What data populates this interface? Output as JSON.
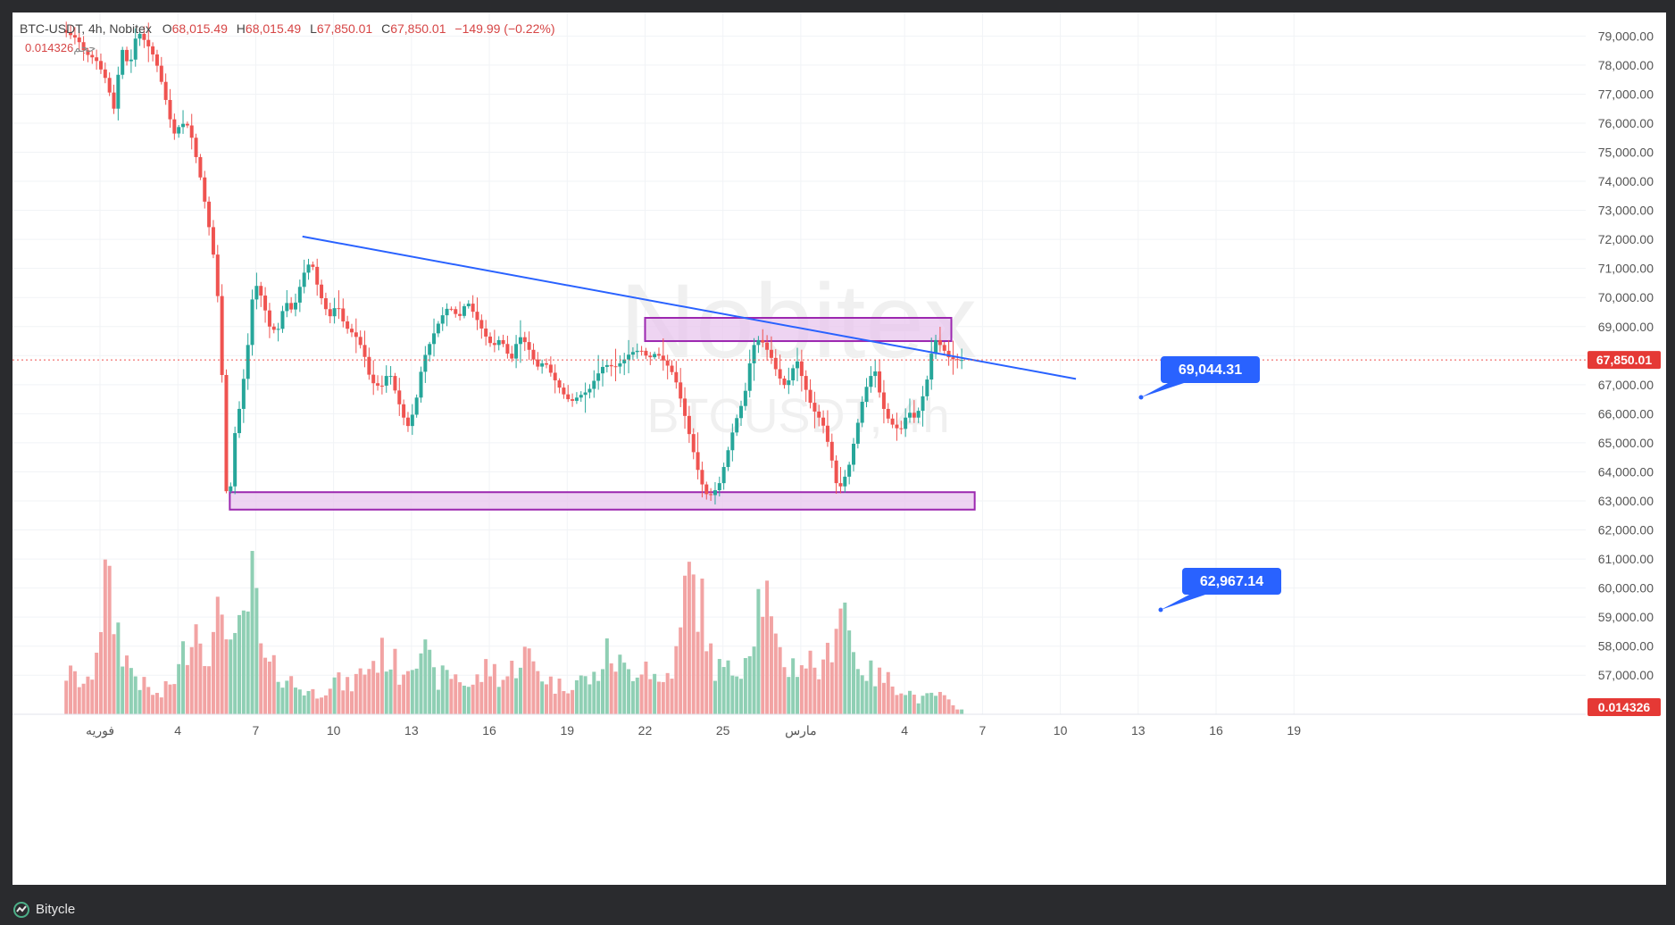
{
  "legend": {
    "symbol": "BTC-USDT, 4h, Nobitex",
    "open_label": "O",
    "open": "68,015.49",
    "high_label": "H",
    "high": "68,015.49",
    "low_label": "L",
    "low": "67,850.01",
    "close_label": "C",
    "close": "67,850.01",
    "change": "−149.99 (−0.22%)",
    "volume_label": "حجم",
    "volume": "0.014326"
  },
  "watermark": {
    "line1": "Nobitex",
    "line2": "BTCUSDT, 4h"
  },
  "footer": {
    "brand": "Bitycle"
  },
  "colors": {
    "up": "#26a69a",
    "down": "#ef5350",
    "up_volume": "#8fcfb4",
    "down_volume": "#f2a3a3",
    "trendline": "#2962ff",
    "zone_fill": "#e8c6ee",
    "zone_border": "#9c27b0",
    "callout": "#2962ff",
    "price_tag": "#e53935"
  },
  "chart_data": {
    "type": "candlestick",
    "symbol": "BTC-USDT",
    "timeframe": "4h",
    "y_axis": {
      "range": [
        55800,
        79700
      ],
      "tick_values": [
        57000,
        58000,
        59000,
        60000,
        61000,
        62000,
        63000,
        64000,
        65000,
        66000,
        67000,
        68000,
        69000,
        70000,
        71000,
        72000,
        73000,
        74000,
        75000,
        76000,
        77000,
        78000,
        79000
      ],
      "tick_labels": [
        "57,000.00",
        "58,000.00",
        "59,000.00",
        "60,000.00",
        "61,000.00",
        "62,000.00",
        "63,000.00",
        "64,000.00",
        "65,000.00",
        "66,000.00",
        "67,000.00",
        "68,000.00",
        "69,000.00",
        "70,000.00",
        "71,000.00",
        "72,000.00",
        "73,000.00",
        "74,000.00",
        "75,000.00",
        "76,000.00",
        "77,000.00",
        "78,000.00",
        "79,000.00"
      ]
    },
    "x_axis": {
      "tick_labels": [
        "فوریه",
        "4",
        "7",
        "10",
        "13",
        "16",
        "19",
        "22",
        "25",
        "مارس",
        "4",
        "7",
        "10",
        "13",
        "16",
        "19"
      ],
      "tick_days": [
        1,
        4,
        7,
        10,
        13,
        16,
        19,
        22,
        25,
        28,
        32,
        35,
        38,
        41,
        44,
        47
      ]
    },
    "current_price": {
      "value": 67850.01,
      "label": "67,850.01"
    },
    "current_volume_label": "0.014326",
    "candles_path": [
      [
        -0.3,
        79200
      ],
      [
        0.3,
        78900
      ],
      [
        0.6,
        78400
      ],
      [
        1.0,
        78200
      ],
      [
        1.4,
        77500
      ],
      [
        1.7,
        76500
      ],
      [
        2.0,
        78600
      ],
      [
        2.3,
        77900
      ],
      [
        2.6,
        79200
      ],
      [
        3.0,
        78700
      ],
      [
        3.3,
        78200
      ],
      [
        3.6,
        77200
      ],
      [
        4.0,
        75600
      ],
      [
        4.3,
        76000
      ],
      [
        4.6,
        75900
      ],
      [
        5.0,
        74300
      ],
      [
        5.3,
        72800
      ],
      [
        5.6,
        71100
      ],
      [
        5.8,
        69000
      ],
      [
        6.0,
        64000
      ],
      [
        6.1,
        62000
      ],
      [
        6.3,
        65000
      ],
      [
        6.6,
        66500
      ],
      [
        6.9,
        68600
      ],
      [
        7.1,
        70600
      ],
      [
        7.4,
        70000
      ],
      [
        7.7,
        69000
      ],
      [
        8.0,
        68800
      ],
      [
        8.3,
        69900
      ],
      [
        8.6,
        69500
      ],
      [
        9.0,
        70800
      ],
      [
        9.3,
        71300
      ],
      [
        9.6,
        70200
      ],
      [
        10.0,
        69300
      ],
      [
        10.3,
        69800
      ],
      [
        10.6,
        69000
      ],
      [
        11.0,
        68700
      ],
      [
        11.3,
        68200
      ],
      [
        11.6,
        67100
      ],
      [
        12.0,
        66900
      ],
      [
        12.3,
        67500
      ],
      [
        12.6,
        66600
      ],
      [
        13.0,
        65500
      ],
      [
        13.3,
        66200
      ],
      [
        13.6,
        67800
      ],
      [
        14.0,
        68700
      ],
      [
        14.3,
        69300
      ],
      [
        14.6,
        69700
      ],
      [
        15.0,
        69300
      ],
      [
        15.3,
        69900
      ],
      [
        15.6,
        69400
      ],
      [
        16.0,
        68700
      ],
      [
        16.3,
        68300
      ],
      [
        16.6,
        68600
      ],
      [
        17.0,
        67800
      ],
      [
        17.3,
        68700
      ],
      [
        17.6,
        68400
      ],
      [
        18.0,
        67600
      ],
      [
        18.3,
        67800
      ],
      [
        18.6,
        67300
      ],
      [
        19.0,
        66700
      ],
      [
        19.3,
        66400
      ],
      [
        19.6,
        66600
      ],
      [
        20.0,
        66800
      ],
      [
        20.3,
        67300
      ],
      [
        20.6,
        67700
      ],
      [
        21.0,
        67600
      ],
      [
        21.3,
        67800
      ],
      [
        21.6,
        68100
      ],
      [
        22.0,
        68200
      ],
      [
        22.3,
        67900
      ],
      [
        22.6,
        68100
      ],
      [
        23.0,
        67700
      ],
      [
        23.3,
        67300
      ],
      [
        23.6,
        66300
      ],
      [
        24.0,
        64800
      ],
      [
        24.3,
        63700
      ],
      [
        24.6,
        63100
      ],
      [
        25.0,
        63500
      ],
      [
        25.3,
        64500
      ],
      [
        25.6,
        65600
      ],
      [
        26.0,
        66600
      ],
      [
        26.3,
        68300
      ],
      [
        26.6,
        68600
      ],
      [
        27.0,
        68000
      ],
      [
        27.3,
        67300
      ],
      [
        27.6,
        66900
      ],
      [
        28.0,
        67900
      ],
      [
        28.3,
        67000
      ],
      [
        28.6,
        66200
      ],
      [
        29.0,
        65700
      ],
      [
        29.3,
        64700
      ],
      [
        29.6,
        63300
      ],
      [
        30.0,
        64100
      ],
      [
        30.3,
        65400
      ],
      [
        30.6,
        66700
      ],
      [
        31.0,
        67600
      ],
      [
        31.3,
        66300
      ],
      [
        31.6,
        65700
      ],
      [
        32.0,
        65400
      ],
      [
        32.3,
        66100
      ],
      [
        32.6,
        65800
      ],
      [
        33.0,
        67000
      ],
      [
        33.3,
        68600
      ],
      [
        33.6,
        68300
      ],
      [
        33.9,
        67900
      ],
      [
        34.2,
        67850
      ]
    ],
    "volume_path": [
      [
        -0.3,
        0.3
      ],
      [
        0.6,
        0.2
      ],
      [
        1.2,
        0.95
      ],
      [
        2.0,
        0.4
      ],
      [
        2.6,
        0.22
      ],
      [
        3.3,
        0.12
      ],
      [
        4.0,
        0.3
      ],
      [
        4.6,
        0.7
      ],
      [
        5.3,
        0.45
      ],
      [
        5.8,
        0.9
      ],
      [
        6.1,
        0.4
      ],
      [
        6.5,
        0.65
      ],
      [
        6.9,
        0.95
      ],
      [
        7.3,
        0.35
      ],
      [
        8.0,
        0.3
      ],
      [
        8.6,
        0.2
      ],
      [
        9.3,
        0.15
      ],
      [
        10.0,
        0.25
      ],
      [
        10.6,
        0.2
      ],
      [
        11.3,
        0.35
      ],
      [
        12.0,
        0.45
      ],
      [
        12.6,
        0.3
      ],
      [
        13.3,
        0.55
      ],
      [
        13.9,
        0.25
      ],
      [
        14.6,
        0.3
      ],
      [
        15.3,
        0.2
      ],
      [
        16.0,
        0.35
      ],
      [
        16.6,
        0.25
      ],
      [
        17.3,
        0.45
      ],
      [
        18.0,
        0.3
      ],
      [
        18.6,
        0.2
      ],
      [
        19.3,
        0.25
      ],
      [
        20.0,
        0.25
      ],
      [
        20.6,
        0.45
      ],
      [
        21.3,
        0.3
      ],
      [
        22.0,
        0.4
      ],
      [
        22.6,
        0.2
      ],
      [
        23.3,
        0.45
      ],
      [
        23.6,
        1.0
      ],
      [
        24.0,
        0.9
      ],
      [
        24.3,
        0.7
      ],
      [
        24.6,
        0.35
      ],
      [
        25.3,
        0.3
      ],
      [
        25.9,
        0.45
      ],
      [
        26.3,
        0.8
      ],
      [
        26.6,
        0.95
      ],
      [
        27.0,
        0.45
      ],
      [
        27.6,
        0.35
      ],
      [
        28.3,
        0.4
      ],
      [
        28.9,
        0.3
      ],
      [
        29.6,
        0.95
      ],
      [
        30.0,
        0.45
      ],
      [
        30.6,
        0.3
      ],
      [
        31.3,
        0.25
      ],
      [
        31.9,
        0.2
      ],
      [
        32.6,
        0.1
      ],
      [
        33.3,
        0.15
      ],
      [
        33.9,
        0.05
      ]
    ],
    "trendline": {
      "start": [
        8.8,
        72100
      ],
      "end": [
        38.6,
        67200
      ]
    },
    "zones": [
      {
        "x_start": 22.0,
        "x_end": 33.8,
        "y_low": 68500,
        "y_high": 69300,
        "label": "69,044.31"
      },
      {
        "x_start": 6.0,
        "x_end": 34.7,
        "y_low": 62700,
        "y_high": 63300,
        "label": "62,967.14"
      }
    ]
  }
}
